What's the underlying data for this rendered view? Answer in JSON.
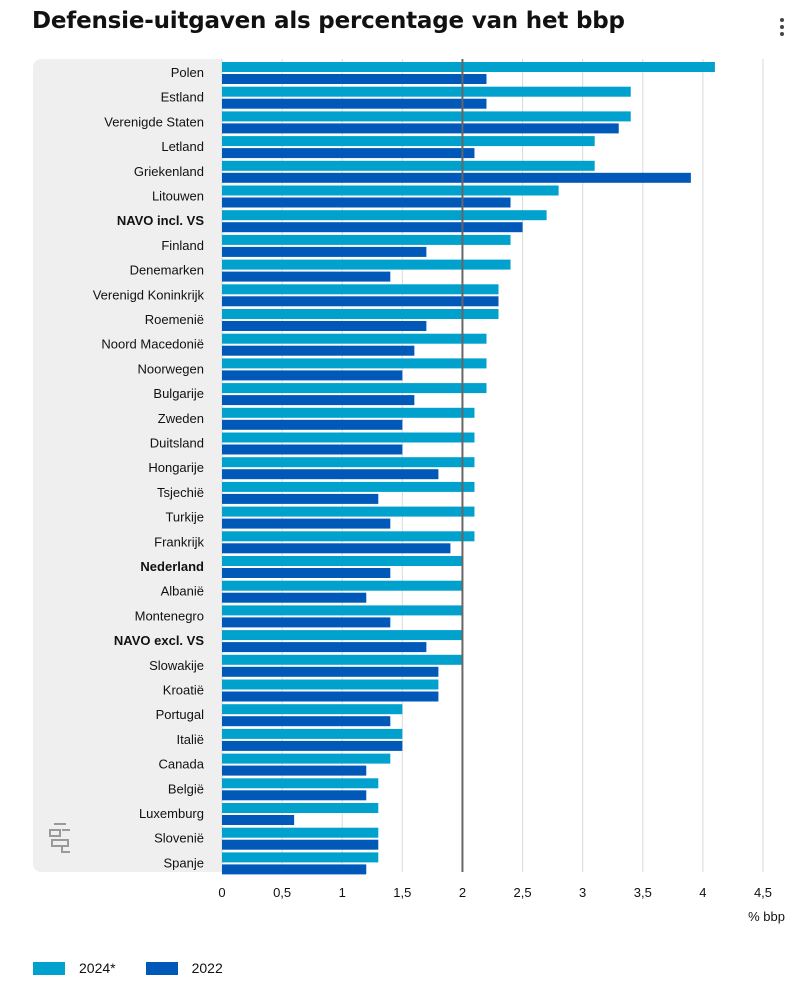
{
  "header": {
    "title": "Defensie-uitgaven als percentage van het bbp"
  },
  "icons": {
    "menu": "kebab-menu-icon",
    "logo": "cbs-logo-icon"
  },
  "colors": {
    "series_2024": "#00a1cd",
    "series_2022": "#0058b8",
    "panel": "#efefef",
    "reference_line": "#666666",
    "grid": "#d9d9d9"
  },
  "chart_data": {
    "type": "bar",
    "orientation": "horizontal",
    "title": "Defensie-uitgaven als percentage van het bbp",
    "xlabel": "% bbp",
    "xlim": [
      0,
      4.5
    ],
    "xticks": [
      "0",
      "0,5",
      "1",
      "1,5",
      "2",
      "2,5",
      "3",
      "3,5",
      "4",
      "4,5"
    ],
    "reference_value": 2,
    "bold_categories": [
      "NAVO incl. VS",
      "Nederland",
      "NAVO excl. VS"
    ],
    "categories": [
      "Polen",
      "Estland",
      "Verenigde Staten",
      "Letland",
      "Griekenland",
      "Litouwen",
      "NAVO incl. VS",
      "Finland",
      "Denemarken",
      "Verenigd Koninkrijk",
      "Roemenië",
      "Noord Macedonië",
      "Noorwegen",
      "Bulgarije",
      "Zweden",
      "Duitsland",
      "Hongarije",
      "Tsjechië",
      "Turkije",
      "Frankrijk",
      "Nederland",
      "Albanië",
      "Montenegro",
      "NAVO excl. VS",
      "Slowakije",
      "Kroatië",
      "Portugal",
      "Italië",
      "Canada",
      "België",
      "Luxemburg",
      "Slovenië",
      "Spanje"
    ],
    "series": [
      {
        "name": "2024*",
        "color": "#00a1cd",
        "values": [
          4.1,
          3.4,
          3.4,
          3.1,
          3.1,
          2.8,
          2.7,
          2.4,
          2.4,
          2.3,
          2.3,
          2.2,
          2.2,
          2.2,
          2.1,
          2.1,
          2.1,
          2.1,
          2.1,
          2.1,
          2.0,
          2.0,
          2.0,
          2.0,
          2.0,
          1.8,
          1.5,
          1.5,
          1.4,
          1.3,
          1.3,
          1.3,
          1.3
        ]
      },
      {
        "name": "2022",
        "color": "#0058b8",
        "values": [
          2.2,
          2.2,
          3.3,
          2.1,
          3.9,
          2.4,
          2.5,
          1.7,
          1.4,
          2.3,
          1.7,
          1.6,
          1.5,
          1.6,
          1.5,
          1.5,
          1.8,
          1.3,
          1.4,
          1.9,
          1.4,
          1.2,
          1.4,
          1.7,
          1.8,
          1.8,
          1.4,
          1.5,
          1.2,
          1.2,
          0.6,
          1.3,
          1.2
        ]
      }
    ],
    "legend_position": "bottom-left",
    "grid": true
  }
}
